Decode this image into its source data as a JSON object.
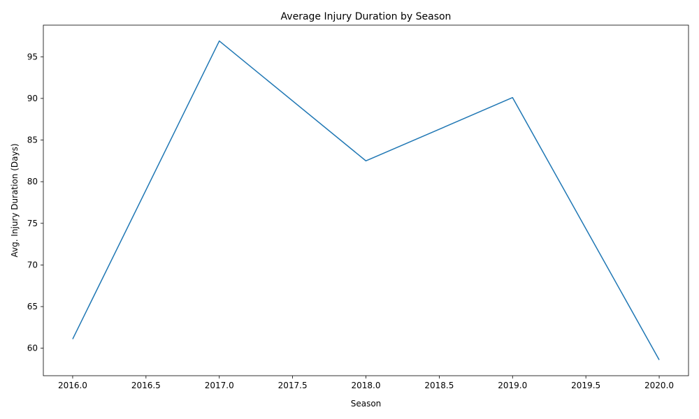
{
  "chart_data": {
    "type": "line",
    "title": "Average Injury Duration by Season",
    "xlabel": "Season",
    "ylabel": "Avg. Injury Duration (Days)",
    "xlim": [
      2015.8,
      2020.2
    ],
    "ylim": [
      56.7,
      98.8
    ],
    "xticks": [
      2016.0,
      2016.5,
      2017.0,
      2017.5,
      2018.0,
      2018.5,
      2019.0,
      2019.5,
      2020.0
    ],
    "xtick_labels": [
      "2016.0",
      "2016.5",
      "2017.0",
      "2017.5",
      "2018.0",
      "2018.5",
      "2019.0",
      "2019.5",
      "2020.0"
    ],
    "yticks": [
      60,
      65,
      70,
      75,
      80,
      85,
      90,
      95
    ],
    "ytick_labels": [
      "60",
      "65",
      "70",
      "75",
      "80",
      "85",
      "90",
      "95"
    ],
    "grid": false,
    "series": [
      {
        "color": "#1f77b4",
        "x": [
          2016,
          2017,
          2018,
          2019,
          2020
        ],
        "y": [
          61.1,
          96.9,
          82.5,
          90.1,
          58.6
        ]
      }
    ]
  }
}
